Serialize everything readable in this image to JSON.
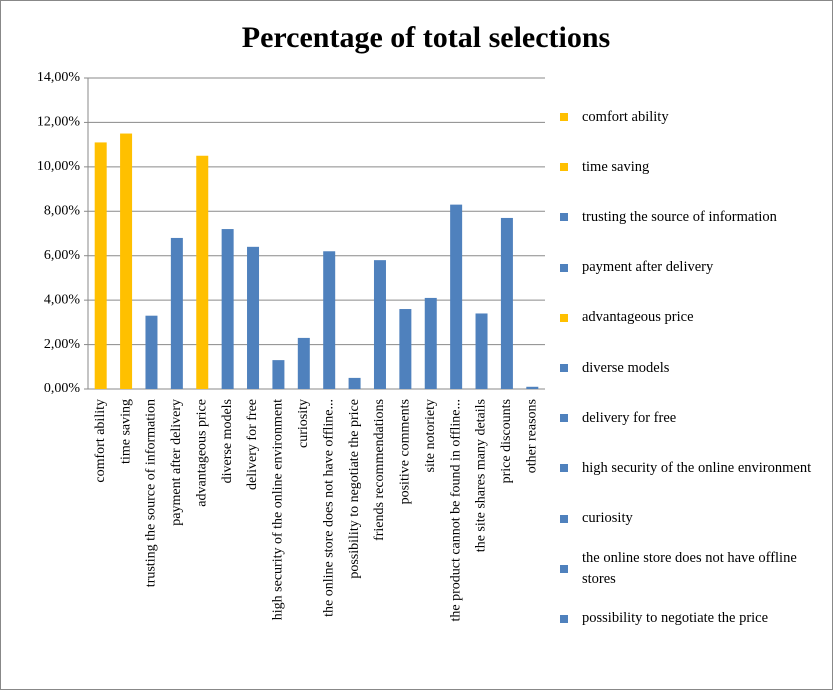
{
  "chart_data": {
    "type": "bar",
    "title": "Percentage of total selections",
    "categories": [
      "comfort ability",
      "time saving",
      "trusting the source of information",
      "payment after delivery",
      "advantageous price",
      "diverse models",
      "delivery for free",
      "high security of the online environment",
      "curiosity",
      "the online store does not have offline...",
      "possibility to negotiate the price",
      "friends recommendations",
      "positive comments",
      "site notoriety",
      "the product cannot be found in offline...",
      "the site shares many details",
      "price discounts",
      "other reasons"
    ],
    "values": [
      11.1,
      11.5,
      3.3,
      6.8,
      10.5,
      7.2,
      6.4,
      1.3,
      2.3,
      6.2,
      0.5,
      5.8,
      3.6,
      4.1,
      8.3,
      3.4,
      7.7,
      0.1
    ],
    "colors": [
      "#ffc000",
      "#ffc000",
      "#4f81bd",
      "#4f81bd",
      "#ffc000",
      "#4f81bd",
      "#4f81bd",
      "#4f81bd",
      "#4f81bd",
      "#4f81bd",
      "#4f81bd",
      "#4f81bd",
      "#4f81bd",
      "#4f81bd",
      "#4f81bd",
      "#4f81bd",
      "#4f81bd",
      "#4f81bd"
    ],
    "legend": [
      "comfort ability",
      "time saving",
      "trusting the source of information",
      "payment after delivery",
      "advantageous price",
      "diverse models",
      "delivery for free",
      "high security of the online environment",
      "curiosity",
      "the online store does not have offline stores",
      "possibility to negotiate the price"
    ],
    "ylim": [
      0,
      14
    ],
    "yticks": [
      {
        "value": 0,
        "label": "0,00%"
      },
      {
        "value": 2,
        "label": "2,00%"
      },
      {
        "value": 4,
        "label": "4,00%"
      },
      {
        "value": 6,
        "label": "6,00%"
      },
      {
        "value": 8,
        "label": "8,00%"
      },
      {
        "value": 10,
        "label": "10,00%"
      },
      {
        "value": 12,
        "label": "12,00%"
      },
      {
        "value": 14,
        "label": "14,00%"
      }
    ],
    "grid": true
  }
}
